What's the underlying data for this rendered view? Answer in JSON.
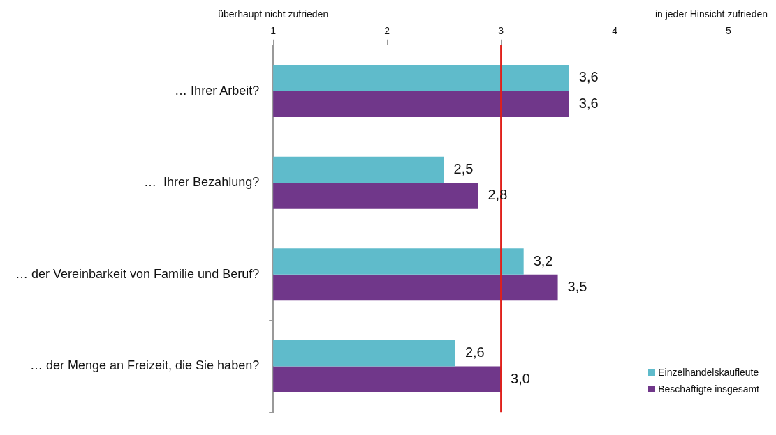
{
  "chart_data": {
    "type": "bar",
    "orientation": "horizontal",
    "categories": [
      "… Ihrer Arbeit?",
      "…  Ihrer Bezahlung?",
      "… der Vereinbarkeit von Familie und Beruf?",
      "… der Menge an Freizeit, die Sie haben?"
    ],
    "series": [
      {
        "name": "Einzelhandelskaufleute",
        "color": "#5fbbcb",
        "values": [
          3.6,
          2.5,
          3.2,
          2.6
        ],
        "value_labels": [
          "3,6",
          "2,5",
          "3,2",
          "2,6"
        ]
      },
      {
        "name": "Beschäftigte insgesamt",
        "color": "#70378a",
        "values": [
          3.6,
          2.8,
          3.5,
          3.0
        ],
        "value_labels": [
          "3,6",
          "2,8",
          "3,5",
          "3,0"
        ]
      }
    ],
    "xlim": [
      1,
      5
    ],
    "xticks": [
      1,
      2,
      3,
      4,
      5
    ],
    "grid": false,
    "legend": "bottom right",
    "ref_lines": [
      {
        "axis": "x",
        "value": 3,
        "color": "#e0201b"
      }
    ],
    "annotations": [
      "überhaupt nicht zufrieden",
      "in jeder Hinsicht zufrieden"
    ]
  }
}
